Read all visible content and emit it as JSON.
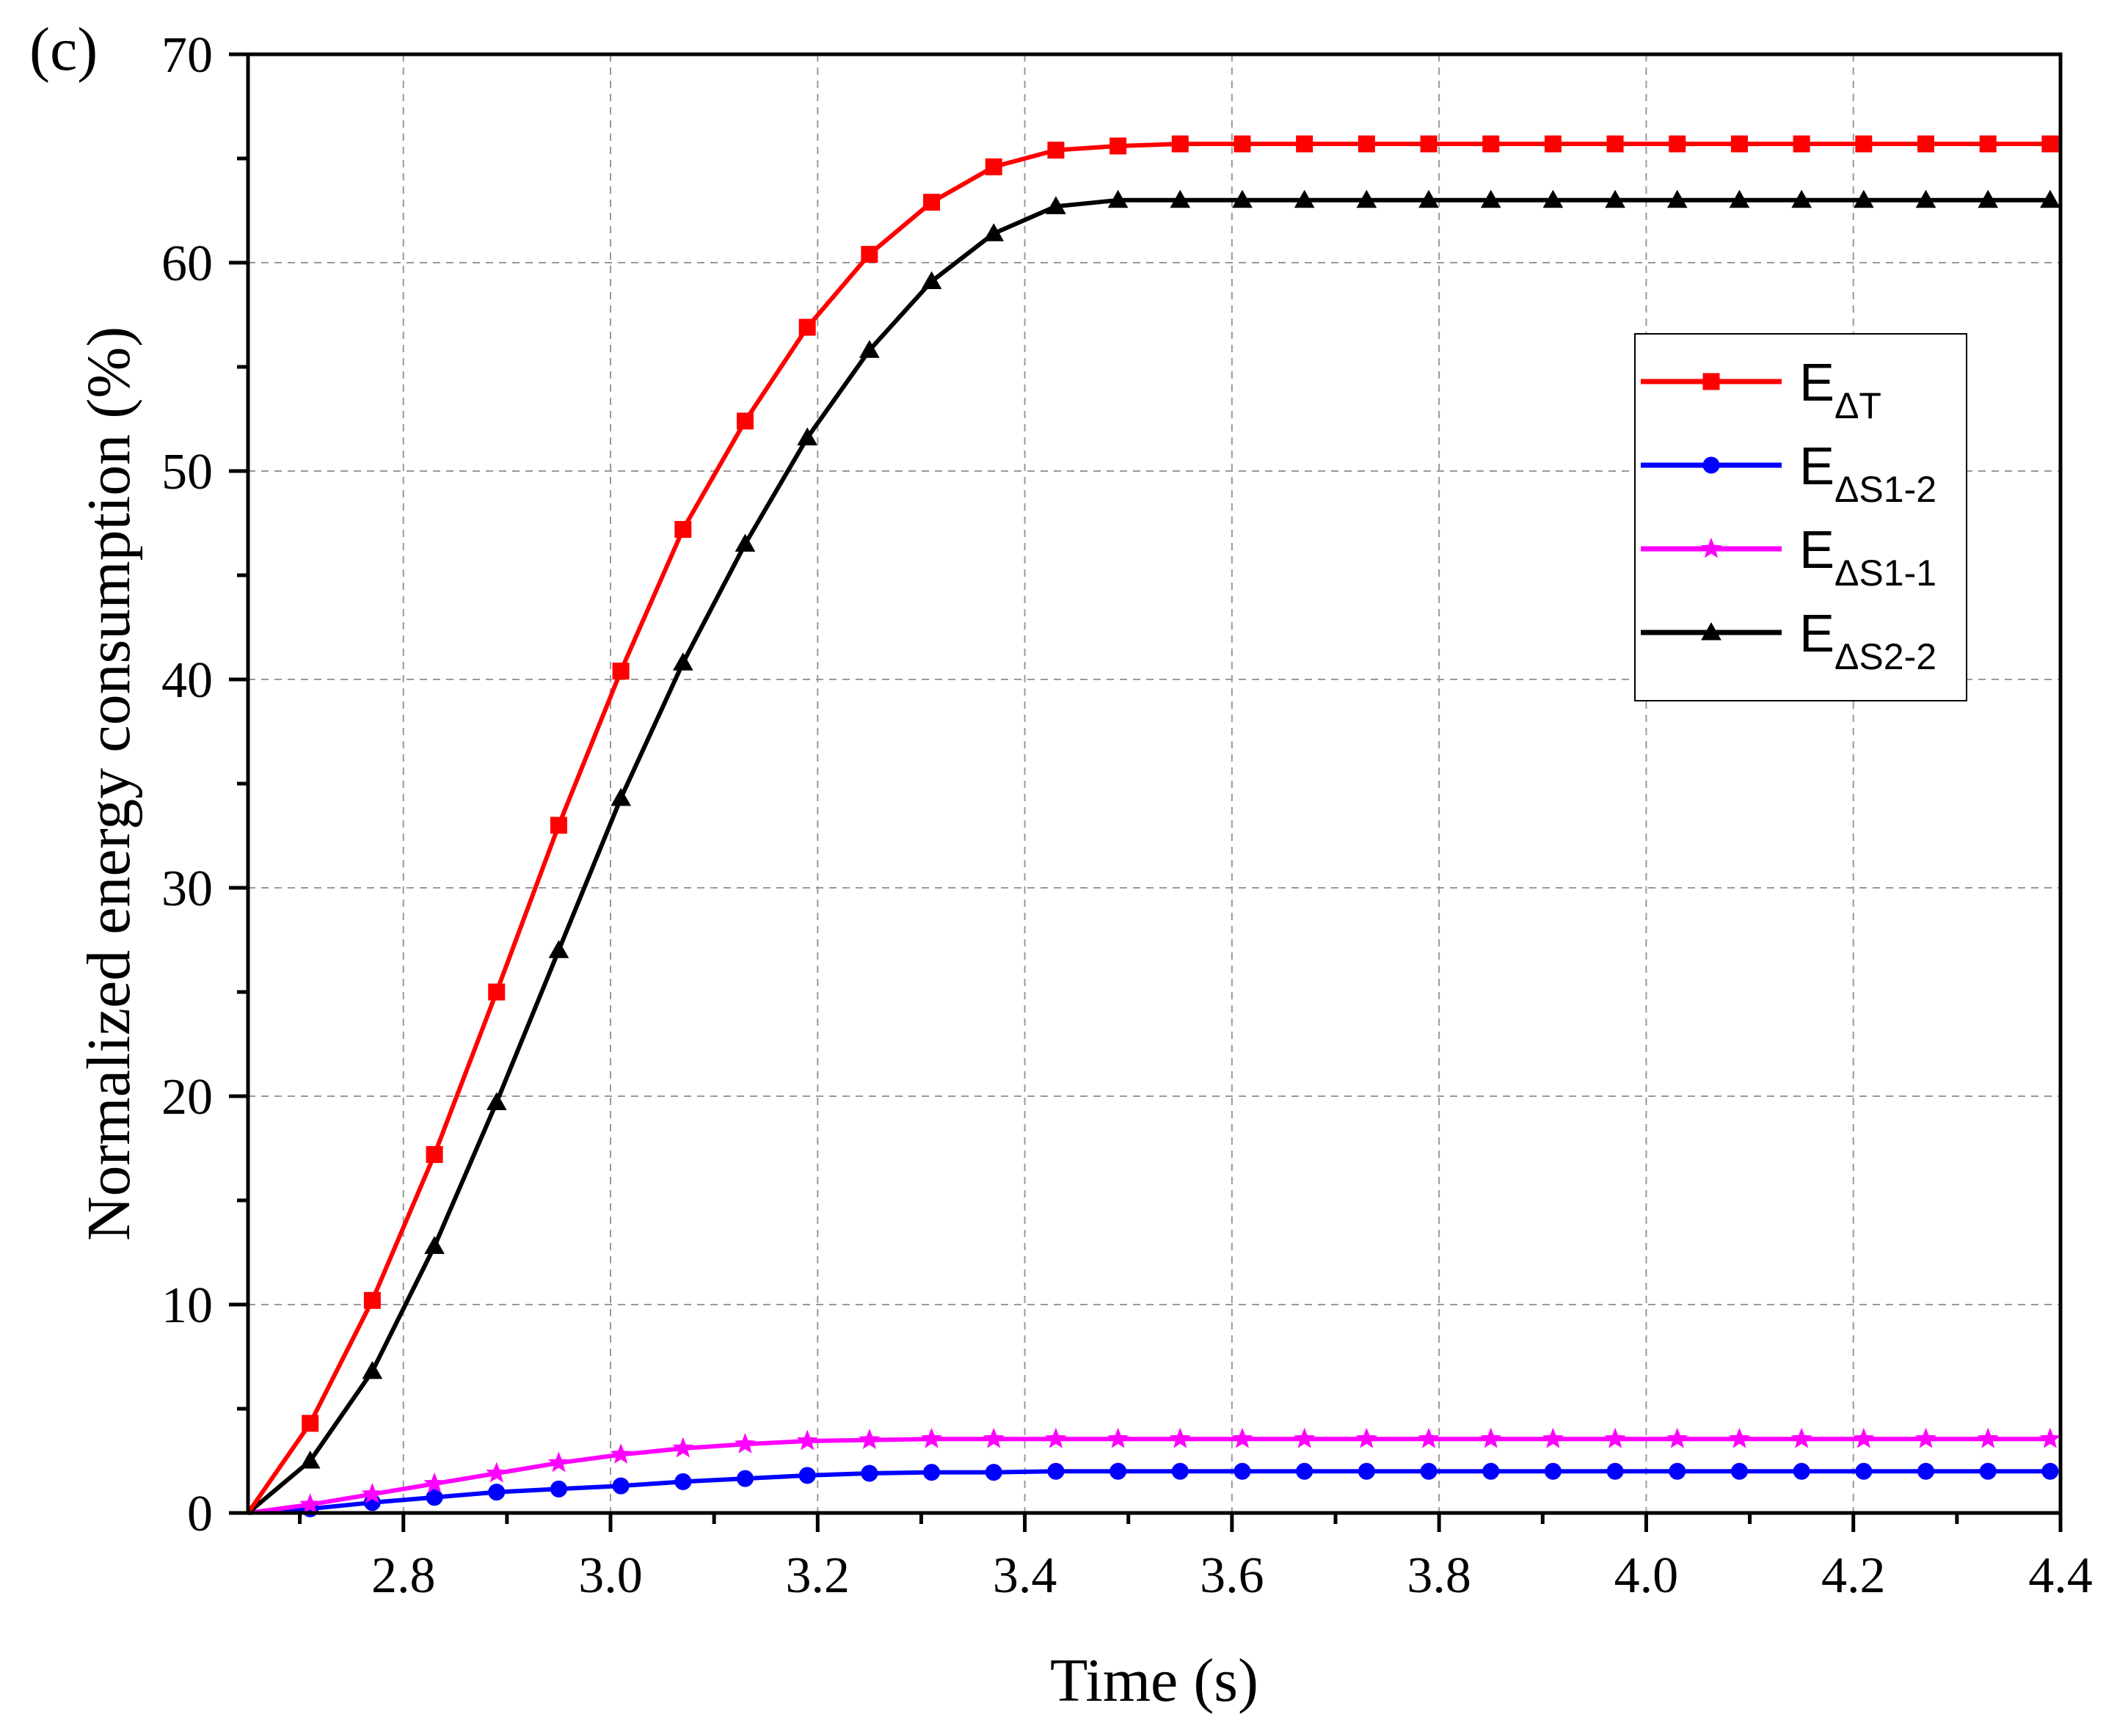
{
  "chart_data": {
    "type": "line",
    "panel_label": "(c)",
    "xlabel": "Time (s)",
    "ylabel": "Normalized energy consumption (%)",
    "xlim": [
      2.65,
      4.4
    ],
    "ylim": [
      0,
      70
    ],
    "xticks": [
      2.8,
      3.0,
      3.2,
      3.4,
      3.6,
      3.8,
      4.0,
      4.2,
      4.4
    ],
    "xtick_labels": [
      "2.8",
      "3.0",
      "3.2",
      "3.4",
      "3.6",
      "3.8",
      "4.0",
      "4.2",
      "4.4"
    ],
    "yticks": [
      0,
      10,
      20,
      30,
      40,
      50,
      60,
      70
    ],
    "ytick_labels": [
      "0",
      "10",
      "20",
      "30",
      "40",
      "50",
      "60",
      "70"
    ],
    "grid": true,
    "legend_position": "right, upper-middle",
    "series": [
      {
        "name": "E_ΔT",
        "label_main": "E",
        "label_sub": "ΔT",
        "color": "#ff0000",
        "marker": "square",
        "x": [
          2.65,
          2.71,
          2.77,
          2.83,
          2.89,
          2.95,
          3.01,
          3.07,
          3.13,
          3.19,
          3.25,
          3.31,
          3.37,
          3.43,
          3.49,
          3.55,
          3.61,
          3.67,
          3.73,
          3.79,
          3.85,
          3.91,
          3.97,
          4.03,
          4.09,
          4.15,
          4.21,
          4.27,
          4.33,
          4.39
        ],
        "values": [
          0,
          4.3,
          10.2,
          17.2,
          25.0,
          33.0,
          40.4,
          47.2,
          52.4,
          56.9,
          60.4,
          62.9,
          64.6,
          65.4,
          65.6,
          65.7,
          65.7,
          65.7,
          65.7,
          65.7,
          65.7,
          65.7,
          65.7,
          65.7,
          65.7,
          65.7,
          65.7,
          65.7,
          65.7,
          65.7
        ]
      },
      {
        "name": "E_ΔS1-2",
        "label_main": "E",
        "label_sub": "ΔS1-2",
        "color": "#0000ff",
        "marker": "circle",
        "x": [
          2.65,
          2.71,
          2.77,
          2.83,
          2.89,
          2.95,
          3.01,
          3.07,
          3.13,
          3.19,
          3.25,
          3.31,
          3.37,
          3.43,
          3.49,
          3.55,
          3.61,
          3.67,
          3.73,
          3.79,
          3.85,
          3.91,
          3.97,
          4.03,
          4.09,
          4.15,
          4.21,
          4.27,
          4.33,
          4.39
        ],
        "values": [
          0,
          0.2,
          0.5,
          0.75,
          1.0,
          1.15,
          1.3,
          1.5,
          1.65,
          1.8,
          1.9,
          1.95,
          1.95,
          2.0,
          2.0,
          2.0,
          2.0,
          2.0,
          2.0,
          2.0,
          2.0,
          2.0,
          2.0,
          2.0,
          2.0,
          2.0,
          2.0,
          2.0,
          2.0,
          2.0
        ]
      },
      {
        "name": "E_ΔS1-1",
        "label_main": "E",
        "label_sub": "ΔS1-1",
        "color": "#ff00ff",
        "marker": "star",
        "x": [
          2.65,
          2.71,
          2.77,
          2.83,
          2.89,
          2.95,
          3.01,
          3.07,
          3.13,
          3.19,
          3.25,
          3.31,
          3.37,
          3.43,
          3.49,
          3.55,
          3.61,
          3.67,
          3.73,
          3.79,
          3.85,
          3.91,
          3.97,
          4.03,
          4.09,
          4.15,
          4.21,
          4.27,
          4.33,
          4.39
        ],
        "values": [
          0,
          0.4,
          0.9,
          1.4,
          1.9,
          2.4,
          2.8,
          3.1,
          3.3,
          3.45,
          3.5,
          3.55,
          3.55,
          3.55,
          3.55,
          3.55,
          3.55,
          3.55,
          3.55,
          3.55,
          3.55,
          3.55,
          3.55,
          3.55,
          3.55,
          3.55,
          3.55,
          3.55,
          3.55,
          3.55
        ]
      },
      {
        "name": "E_ΔS2-2",
        "label_main": "E",
        "label_sub": "ΔS2-2",
        "color": "#000000",
        "marker": "triangle",
        "x": [
          2.65,
          2.71,
          2.77,
          2.83,
          2.89,
          2.95,
          3.01,
          3.07,
          3.13,
          3.19,
          3.25,
          3.31,
          3.37,
          3.43,
          3.49,
          3.55,
          3.61,
          3.67,
          3.73,
          3.79,
          3.85,
          3.91,
          3.97,
          4.03,
          4.09,
          4.15,
          4.21,
          4.27,
          4.33,
          4.39
        ],
        "values": [
          0,
          2.5,
          6.8,
          12.8,
          19.7,
          27.0,
          34.3,
          40.8,
          46.5,
          51.6,
          55.8,
          59.1,
          61.4,
          62.7,
          63.0,
          63.0,
          63.0,
          63.0,
          63.0,
          63.0,
          63.0,
          63.0,
          63.0,
          63.0,
          63.0,
          63.0,
          63.0,
          63.0,
          63.0,
          63.0
        ]
      }
    ]
  }
}
